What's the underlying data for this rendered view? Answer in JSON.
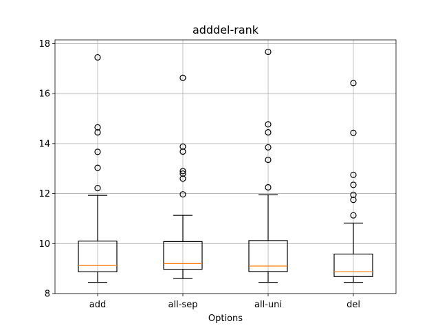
{
  "chart_data": {
    "type": "box",
    "title": "adddel-rank",
    "xlabel": "Options",
    "ylabel": "",
    "categories": [
      "add",
      "all-sep",
      "all-uni",
      "del"
    ],
    "ylim": [
      8.0,
      18.15
    ],
    "yticks": [
      8,
      10,
      12,
      14,
      16,
      18
    ],
    "grid": true,
    "colors": {
      "box": "#000000",
      "median": "#ff7f0e",
      "grid": "#b0b0b0"
    },
    "boxes": [
      {
        "label": "add",
        "whisker_low": 8.45,
        "q1": 8.87,
        "median": 9.12,
        "q3": 10.1,
        "whisker_high": 11.93,
        "fliers": [
          12.22,
          13.03,
          13.67,
          14.45,
          14.65,
          17.45
        ]
      },
      {
        "label": "all-sep",
        "whisker_low": 8.6,
        "q1": 8.97,
        "median": 9.2,
        "q3": 10.08,
        "whisker_high": 11.13,
        "fliers": [
          11.97,
          12.6,
          12.8,
          12.9,
          13.68,
          13.88,
          16.63
        ]
      },
      {
        "label": "all-uni",
        "whisker_low": 8.45,
        "q1": 8.88,
        "median": 9.1,
        "q3": 10.12,
        "whisker_high": 11.95,
        "fliers": [
          12.25,
          13.35,
          13.85,
          14.45,
          14.77,
          17.67
        ]
      },
      {
        "label": "del",
        "whisker_low": 8.45,
        "q1": 8.68,
        "median": 8.87,
        "q3": 9.58,
        "whisker_high": 10.82,
        "fliers": [
          11.13,
          11.75,
          11.95,
          12.35,
          12.75,
          14.43,
          16.42
        ]
      }
    ]
  }
}
